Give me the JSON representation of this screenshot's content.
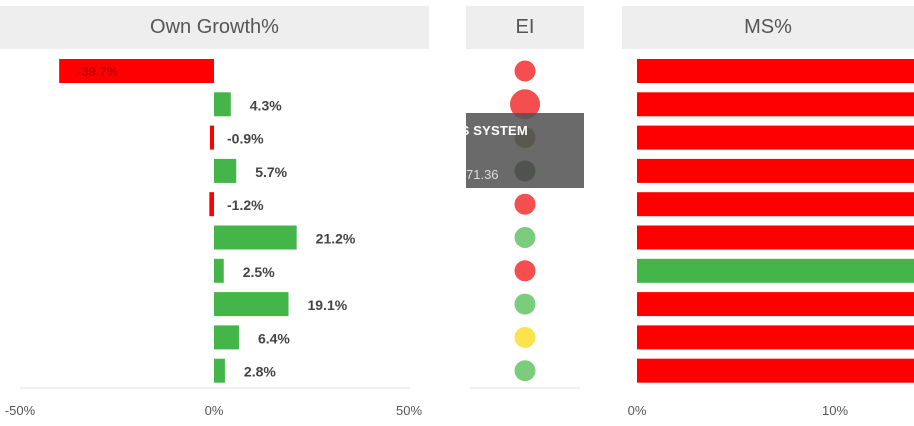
{
  "panels": {
    "growth": {
      "title": "Own Growth%"
    },
    "ei": {
      "title": "EI"
    },
    "ms": {
      "title": "MS%"
    }
  },
  "tooltip": {
    "title": "NERVOUS SYSTEM",
    "value": "71.36"
  },
  "colors": {
    "positive": "#44b549",
    "negative": "#ff0000",
    "ei_red": "#f54e4e",
    "ei_green": "#7ccc7e",
    "ei_yellow": "#fce24d",
    "ei_dark": "#2a3a2a",
    "ei_olive": "#6d6128"
  },
  "chart_data": [
    {
      "type": "bar",
      "orientation": "horizontal",
      "title": "Own Growth%",
      "values": [
        -39.7,
        4.3,
        -0.9,
        5.7,
        -1.2,
        21.2,
        2.5,
        19.1,
        6.4,
        2.8
      ],
      "labels": [
        "-39.7%",
        "4.3%",
        "-0.9%",
        "5.7%",
        "-1.2%",
        "21.2%",
        "2.5%",
        "19.1%",
        "6.4%",
        "2.8%"
      ],
      "xlim": [
        -50,
        50
      ],
      "xticks": [
        "-50%",
        "0%",
        "50%"
      ],
      "grid": false
    },
    {
      "type": "scatter",
      "title": "EI",
      "colors": [
        "red",
        "red",
        "olive",
        "dark",
        "red",
        "green",
        "red",
        "green",
        "yellow",
        "green"
      ],
      "highlighted_index": 1
    },
    {
      "type": "bar",
      "orientation": "horizontal",
      "title": "MS%",
      "bar_colors": [
        "red",
        "red",
        "red",
        "red",
        "red",
        "red",
        "green",
        "red",
        "red",
        "red"
      ],
      "xticks": [
        "0%",
        "10%"
      ],
      "grid": false
    }
  ]
}
